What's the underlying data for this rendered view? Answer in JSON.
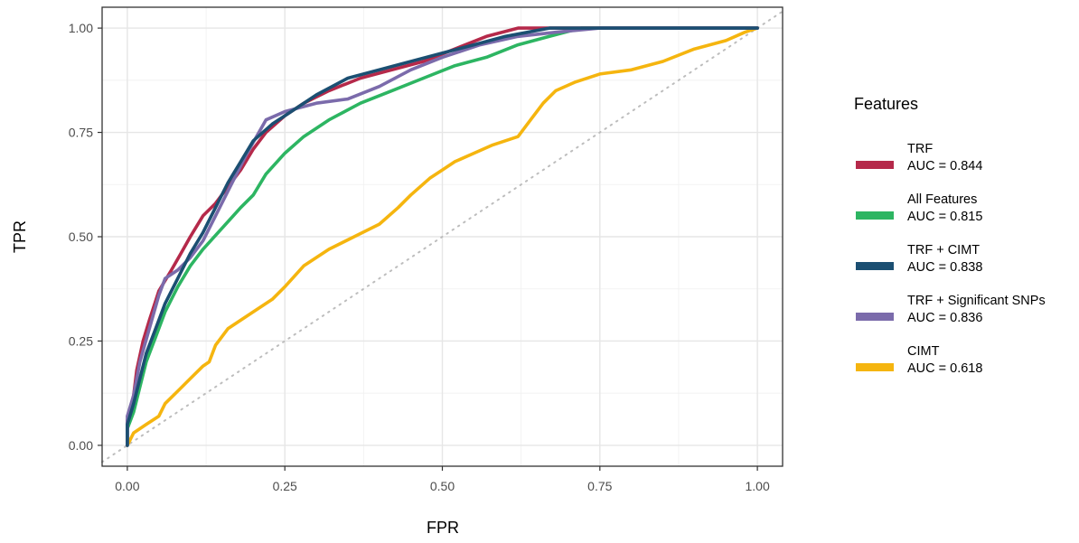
{
  "chart_data": {
    "type": "line",
    "title": "",
    "xlabel": "FPR",
    "ylabel": "TPR",
    "xlim": [
      -0.04,
      1.04
    ],
    "ylim": [
      -0.05,
      1.05
    ],
    "x_ticks": [
      "0.00",
      "0.25",
      "0.50",
      "0.75",
      "1.00"
    ],
    "y_ticks": [
      "0.00",
      "0.25",
      "0.50",
      "0.75",
      "1.00"
    ],
    "grid": true,
    "diagonal_reference": {
      "style": "dotted",
      "color": "#bdbdbd",
      "from": [
        0,
        0
      ],
      "to": [
        1,
        1
      ]
    },
    "legend": {
      "title": "Features",
      "placement": "right",
      "entries": [
        {
          "name": "TRF",
          "auc": "AUC = 0.844",
          "color": "#b5294a"
        },
        {
          "name": "All Features",
          "auc": "AUC = 0.815",
          "color": "#2db562"
        },
        {
          "name": "TRF + CIMT",
          "auc": "AUC = 0.838",
          "color": "#1b4f72"
        },
        {
          "name": "TRF + Significant SNPs",
          "auc": "AUC = 0.836",
          "color": "#7b6bab"
        },
        {
          "name": "CIMT",
          "auc": "AUC = 0.618",
          "color": "#f5b50f"
        }
      ]
    },
    "series": [
      {
        "name": "TRF",
        "color": "#b5294a",
        "points": [
          [
            0,
            0
          ],
          [
            0,
            0.06
          ],
          [
            0.01,
            0.12
          ],
          [
            0.015,
            0.18
          ],
          [
            0.025,
            0.25
          ],
          [
            0.035,
            0.3
          ],
          [
            0.05,
            0.37
          ],
          [
            0.07,
            0.42
          ],
          [
            0.085,
            0.46
          ],
          [
            0.1,
            0.5
          ],
          [
            0.12,
            0.55
          ],
          [
            0.14,
            0.58
          ],
          [
            0.16,
            0.62
          ],
          [
            0.18,
            0.66
          ],
          [
            0.2,
            0.71
          ],
          [
            0.22,
            0.75
          ],
          [
            0.25,
            0.79
          ],
          [
            0.28,
            0.82
          ],
          [
            0.32,
            0.85
          ],
          [
            0.37,
            0.88
          ],
          [
            0.42,
            0.9
          ],
          [
            0.47,
            0.92
          ],
          [
            0.52,
            0.95
          ],
          [
            0.57,
            0.98
          ],
          [
            0.62,
            1.0
          ],
          [
            0.75,
            1.0
          ],
          [
            1.0,
            1.0
          ]
        ]
      },
      {
        "name": "All Features",
        "color": "#2db562",
        "points": [
          [
            0,
            0
          ],
          [
            0,
            0.04
          ],
          [
            0.01,
            0.08
          ],
          [
            0.02,
            0.14
          ],
          [
            0.03,
            0.2
          ],
          [
            0.045,
            0.26
          ],
          [
            0.06,
            0.32
          ],
          [
            0.08,
            0.38
          ],
          [
            0.1,
            0.43
          ],
          [
            0.12,
            0.47
          ],
          [
            0.15,
            0.52
          ],
          [
            0.18,
            0.57
          ],
          [
            0.2,
            0.6
          ],
          [
            0.22,
            0.65
          ],
          [
            0.25,
            0.7
          ],
          [
            0.28,
            0.74
          ],
          [
            0.32,
            0.78
          ],
          [
            0.37,
            0.82
          ],
          [
            0.42,
            0.85
          ],
          [
            0.47,
            0.88
          ],
          [
            0.52,
            0.91
          ],
          [
            0.57,
            0.93
          ],
          [
            0.62,
            0.96
          ],
          [
            0.67,
            0.98
          ],
          [
            0.72,
            1.0
          ],
          [
            1.0,
            1.0
          ]
        ]
      },
      {
        "name": "TRF + CIMT",
        "color": "#1b4f72",
        "points": [
          [
            0,
            0
          ],
          [
            0,
            0.05
          ],
          [
            0.01,
            0.1
          ],
          [
            0.02,
            0.16
          ],
          [
            0.03,
            0.22
          ],
          [
            0.045,
            0.28
          ],
          [
            0.06,
            0.34
          ],
          [
            0.08,
            0.4
          ],
          [
            0.1,
            0.46
          ],
          [
            0.12,
            0.51
          ],
          [
            0.14,
            0.57
          ],
          [
            0.16,
            0.63
          ],
          [
            0.18,
            0.68
          ],
          [
            0.2,
            0.73
          ],
          [
            0.23,
            0.77
          ],
          [
            0.26,
            0.8
          ],
          [
            0.3,
            0.84
          ],
          [
            0.35,
            0.88
          ],
          [
            0.4,
            0.9
          ],
          [
            0.45,
            0.92
          ],
          [
            0.5,
            0.94
          ],
          [
            0.55,
            0.96
          ],
          [
            0.6,
            0.98
          ],
          [
            0.67,
            1.0
          ],
          [
            0.75,
            1.0
          ],
          [
            1.0,
            1.0
          ]
        ]
      },
      {
        "name": "TRF + Significant SNPs",
        "color": "#7b6bab",
        "points": [
          [
            0,
            0
          ],
          [
            0,
            0.07
          ],
          [
            0.01,
            0.12
          ],
          [
            0.02,
            0.2
          ],
          [
            0.035,
            0.28
          ],
          [
            0.05,
            0.36
          ],
          [
            0.06,
            0.4
          ],
          [
            0.08,
            0.42
          ],
          [
            0.1,
            0.45
          ],
          [
            0.12,
            0.49
          ],
          [
            0.14,
            0.55
          ],
          [
            0.16,
            0.61
          ],
          [
            0.19,
            0.7
          ],
          [
            0.22,
            0.78
          ],
          [
            0.25,
            0.8
          ],
          [
            0.3,
            0.82
          ],
          [
            0.35,
            0.83
          ],
          [
            0.4,
            0.86
          ],
          [
            0.45,
            0.9
          ],
          [
            0.5,
            0.93
          ],
          [
            0.56,
            0.96
          ],
          [
            0.62,
            0.98
          ],
          [
            0.68,
            0.99
          ],
          [
            0.75,
            1.0
          ],
          [
            1.0,
            1.0
          ]
        ]
      },
      {
        "name": "CIMT",
        "color": "#f5b50f",
        "points": [
          [
            0,
            0
          ],
          [
            0.01,
            0.03
          ],
          [
            0.03,
            0.05
          ],
          [
            0.05,
            0.07
          ],
          [
            0.06,
            0.1
          ],
          [
            0.08,
            0.13
          ],
          [
            0.1,
            0.16
          ],
          [
            0.12,
            0.19
          ],
          [
            0.13,
            0.2
          ],
          [
            0.14,
            0.24
          ],
          [
            0.16,
            0.28
          ],
          [
            0.2,
            0.32
          ],
          [
            0.23,
            0.35
          ],
          [
            0.25,
            0.38
          ],
          [
            0.28,
            0.43
          ],
          [
            0.32,
            0.47
          ],
          [
            0.36,
            0.5
          ],
          [
            0.4,
            0.53
          ],
          [
            0.43,
            0.57
          ],
          [
            0.45,
            0.6
          ],
          [
            0.48,
            0.64
          ],
          [
            0.5,
            0.66
          ],
          [
            0.52,
            0.68
          ],
          [
            0.55,
            0.7
          ],
          [
            0.58,
            0.72
          ],
          [
            0.62,
            0.74
          ],
          [
            0.64,
            0.78
          ],
          [
            0.66,
            0.82
          ],
          [
            0.68,
            0.85
          ],
          [
            0.71,
            0.87
          ],
          [
            0.75,
            0.89
          ],
          [
            0.8,
            0.9
          ],
          [
            0.85,
            0.92
          ],
          [
            0.9,
            0.95
          ],
          [
            0.95,
            0.97
          ],
          [
            0.98,
            0.99
          ],
          [
            1.0,
            1.0
          ]
        ]
      }
    ]
  }
}
